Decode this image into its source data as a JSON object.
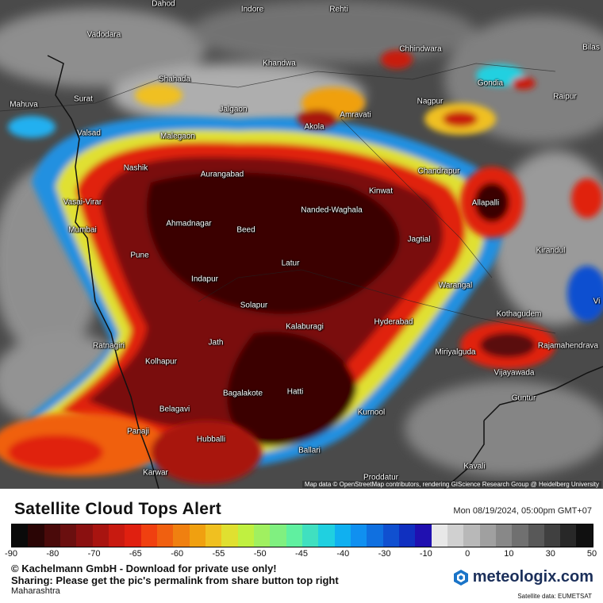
{
  "title": "Satellite Cloud Tops Alert",
  "timestamp": "Mon 08/19/2024, 05:00pm GMT+07",
  "map": {
    "attribution": "Map data © OpenStreetMap contributors, rendering GIScience Research Group @ Heidelberg University",
    "cities": [
      {
        "name": "Dahod"
      },
      {
        "name": "Indore"
      },
      {
        "name": "Rehti"
      },
      {
        "name": "Vadodara"
      },
      {
        "name": "Chhindwara"
      },
      {
        "name": "Bilas"
      },
      {
        "name": "Khandwa"
      },
      {
        "name": "Shahada"
      },
      {
        "name": "Gondia"
      },
      {
        "name": "Mahuva"
      },
      {
        "name": "Surat"
      },
      {
        "name": "Jalgaon"
      },
      {
        "name": "Nagpur"
      },
      {
        "name": "Raipur"
      },
      {
        "name": "Amravati"
      },
      {
        "name": "Akola"
      },
      {
        "name": "Valsad"
      },
      {
        "name": "Malegaon"
      },
      {
        "name": "Nashik"
      },
      {
        "name": "Aurangabad"
      },
      {
        "name": "Chandrapur"
      },
      {
        "name": "Kinwat"
      },
      {
        "name": "Nanded-Waghala"
      },
      {
        "name": "Allapalli"
      },
      {
        "name": "Vasai-Virar"
      },
      {
        "name": "Ahmadnagar"
      },
      {
        "name": "Mumbai"
      },
      {
        "name": "Beed"
      },
      {
        "name": "Jagtial"
      },
      {
        "name": "Pune"
      },
      {
        "name": "Kirandul"
      },
      {
        "name": "Latur"
      },
      {
        "name": "Indapur"
      },
      {
        "name": "Warangal"
      },
      {
        "name": "Solapur"
      },
      {
        "name": "Kothagudem"
      },
      {
        "name": "Hyderabad"
      },
      {
        "name": "Kalaburagi"
      },
      {
        "name": "Ratnagiri"
      },
      {
        "name": "Jath"
      },
      {
        "name": "Rajamahendrava"
      },
      {
        "name": "Kolhapur"
      },
      {
        "name": "Miriyalguda"
      },
      {
        "name": "Vijayawada"
      },
      {
        "name": "Bagalakote"
      },
      {
        "name": "Hatti"
      },
      {
        "name": "Guntur"
      },
      {
        "name": "Belagavi"
      },
      {
        "name": "Kurnool"
      },
      {
        "name": "Panaji"
      },
      {
        "name": "Hubballi"
      },
      {
        "name": "Ballari"
      },
      {
        "name": "Kavali"
      },
      {
        "name": "Karwar"
      },
      {
        "name": "Proddatur"
      },
      {
        "name": "Vi"
      }
    ]
  },
  "legend": {
    "colors": [
      "#0a0a0a",
      "#2a0505",
      "#4a0a0a",
      "#6a0f0f",
      "#8a1010",
      "#a81410",
      "#c81a10",
      "#e02010",
      "#f04010",
      "#f06010",
      "#f08010",
      "#f0a010",
      "#f0c020",
      "#e0e030",
      "#c0f040",
      "#a0f060",
      "#80f080",
      "#60f0a0",
      "#40e0c0",
      "#20d0e0",
      "#10b0f0",
      "#1090f0",
      "#1070e0",
      "#1050d0",
      "#1030c0",
      "#2010b0",
      "#e8e8e8",
      "#d0d0d0",
      "#b8b8b8",
      "#a0a0a0",
      "#888888",
      "#707070",
      "#585858",
      "#404040",
      "#282828",
      "#101010"
    ],
    "ticks": [
      "-90",
      "-80",
      "-70",
      "-65",
      "-60",
      "-55",
      "-50",
      "-45",
      "-40",
      "-30",
      "-10",
      "0",
      "10",
      "30",
      "50"
    ]
  },
  "footer": {
    "copyright": "© Kachelmann GmbH - Download for private use only!",
    "sharing": "Sharing: Please get the pic's permalink from share button top right",
    "region": "Maharashtra",
    "brand": "meteologix.com",
    "satellite_source": "Satellite data: EUMETSAT"
  }
}
